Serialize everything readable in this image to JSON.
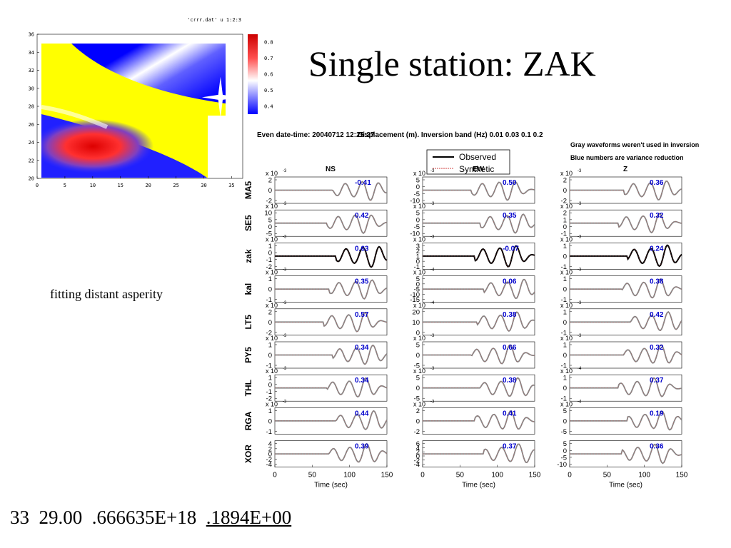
{
  "slide": {
    "title": "Single station: ZAK",
    "note": "fitting distant asperity",
    "bottom_values": [
      "33",
      "29.00",
      ".666635E+18",
      ".1894E+00"
    ]
  },
  "colors": {
    "observed": "#000000",
    "unused": "#888888",
    "variance": "#0000cc",
    "synthetic": "#d04040"
  },
  "chart_data": [
    {
      "type": "heatmap",
      "title": "'crrr.dat' u 1:2:3",
      "x_ticks": [
        "0",
        "5",
        "10",
        "15",
        "20",
        "25",
        "30",
        "35"
      ],
      "y_ticks": [
        "20",
        "22",
        "24",
        "26",
        "28",
        "30",
        "32",
        "34",
        "36"
      ],
      "xlim": [
        0,
        37
      ],
      "ylim": [
        20,
        36
      ],
      "colorbar_ticks": [
        "0.8",
        "0.7",
        "0.6",
        "0.5",
        "0.4"
      ],
      "colorbar_range": [
        0.35,
        0.85
      ],
      "marker": {
        "symbol": "star",
        "x": 33,
        "y": 29
      }
    },
    {
      "type": "line",
      "header": {
        "line1": "Even date-time: 20040712 12:25:27",
        "line2": "Displacement (m).  Inversion band (Hz)  0.01 0.03 0.1 0.2",
        "gray_note": "Gray waveforms weren't used in inversion",
        "blue_note": "Blue numbers are variance reduction"
      },
      "legend": [
        {
          "name": "Observed"
        },
        {
          "name": "Synthetic"
        }
      ],
      "components": [
        "NS",
        "EW",
        "Z"
      ],
      "xlabel": "Time (sec)",
      "x_ticks": [
        "0",
        "50",
        "100",
        "150"
      ],
      "xlim": [
        0,
        150
      ],
      "stations": [
        {
          "name": "MA5",
          "used": false,
          "panels": [
            {
              "exp": "-3",
              "ticks": [
                "2",
                "0",
                "-2"
              ],
              "var": "-0.41"
            },
            {
              "exp": "-3",
              "ticks": [
                "5",
                "0",
                "-5",
                "-10"
              ],
              "var": "0.50"
            },
            {
              "exp": "-3",
              "ticks": [
                "2",
                "0",
                "-2"
              ],
              "var": "0.36"
            }
          ]
        },
        {
          "name": "SE5",
          "used": false,
          "panels": [
            {
              "exp": "-3",
              "ticks": [
                "10",
                "5",
                "0",
                "-5"
              ],
              "var": "0.42"
            },
            {
              "exp": "-3",
              "ticks": [
                "5",
                "0",
                "-5",
                "-10"
              ],
              "var": "0.35"
            },
            {
              "exp": "-3",
              "ticks": [
                "2",
                "1",
                "0",
                "-1"
              ],
              "var": "0.32"
            }
          ]
        },
        {
          "name": "zak",
          "used": true,
          "panels": [
            {
              "exp": "-3",
              "ticks": [
                "1",
                "0",
                "-1",
                "-2"
              ],
              "var": "0.63"
            },
            {
              "exp": "-3",
              "ticks": [
                "3",
                "2",
                "1",
                "0",
                "-1"
              ],
              "var": "-0.07"
            },
            {
              "exp": "-3",
              "ticks": [
                "1",
                "0",
                "-1"
              ],
              "var": "0.24"
            }
          ]
        },
        {
          "name": "kal",
          "used": false,
          "panels": [
            {
              "exp": "-3",
              "ticks": [
                "1",
                "0",
                "-1"
              ],
              "var": "0.35"
            },
            {
              "exp": "-4",
              "ticks": [
                "5",
                "0",
                "-5",
                "-10",
                "-15"
              ],
              "var": "0.06"
            },
            {
              "exp": "-3",
              "ticks": [
                "1",
                "0",
                "-1"
              ],
              "var": "0.38"
            }
          ]
        },
        {
          "name": "LT5",
          "used": false,
          "panels": [
            {
              "exp": "-3",
              "ticks": [
                "2",
                "0",
                "-2"
              ],
              "var": "0.57"
            },
            {
              "exp": "-4",
              "ticks": [
                "20",
                "10",
                "0"
              ],
              "var": "0.38"
            },
            {
              "exp": "-3",
              "ticks": [
                "1",
                "0",
                "-1"
              ],
              "var": "0.42"
            }
          ]
        },
        {
          "name": "PY5",
          "used": false,
          "panels": [
            {
              "exp": "-3",
              "ticks": [
                "1",
                "0",
                "-1"
              ],
              "var": "0.34"
            },
            {
              "exp": "-3",
              "ticks": [
                "5",
                "0",
                "-5"
              ],
              "var": "0.66"
            },
            {
              "exp": "-3",
              "ticks": [
                "1",
                "0",
                "-1"
              ],
              "var": "0.32"
            }
          ]
        },
        {
          "name": "THL",
          "used": false,
          "panels": [
            {
              "exp": "-3",
              "ticks": [
                "1",
                "0",
                "-1",
                "-2"
              ],
              "var": "0.34"
            },
            {
              "exp": "-3",
              "ticks": [
                "5",
                "0",
                "-5"
              ],
              "var": "0.38"
            },
            {
              "exp": "-4",
              "ticks": [
                "1",
                "0",
                "-1"
              ],
              "var": "0.37"
            }
          ]
        },
        {
          "name": "RGA",
          "used": false,
          "panels": [
            {
              "exp": "-3",
              "ticks": [
                "1",
                "0",
                "-1"
              ],
              "var": "0.44"
            },
            {
              "exp": "-3",
              "ticks": [
                "2",
                "0",
                "-2"
              ],
              "var": "0.41"
            },
            {
              "exp": "-4",
              "ticks": [
                "5",
                "0",
                "-5"
              ],
              "var": "0.19"
            }
          ]
        },
        {
          "name": "XOR",
          "used": false,
          "panels": [
            {
              "exp": "",
              "ticks": [
                "4",
                "2",
                "0",
                "-2",
                "-4"
              ],
              "var": "0.39"
            },
            {
              "exp": "",
              "ticks": [
                "6",
                "4",
                "2",
                "0",
                "-2",
                "-4"
              ],
              "var": "0.37"
            },
            {
              "exp": "",
              "ticks": [
                "5",
                "0",
                "-5",
                "-10"
              ],
              "var": "0.36"
            }
          ]
        }
      ]
    }
  ]
}
